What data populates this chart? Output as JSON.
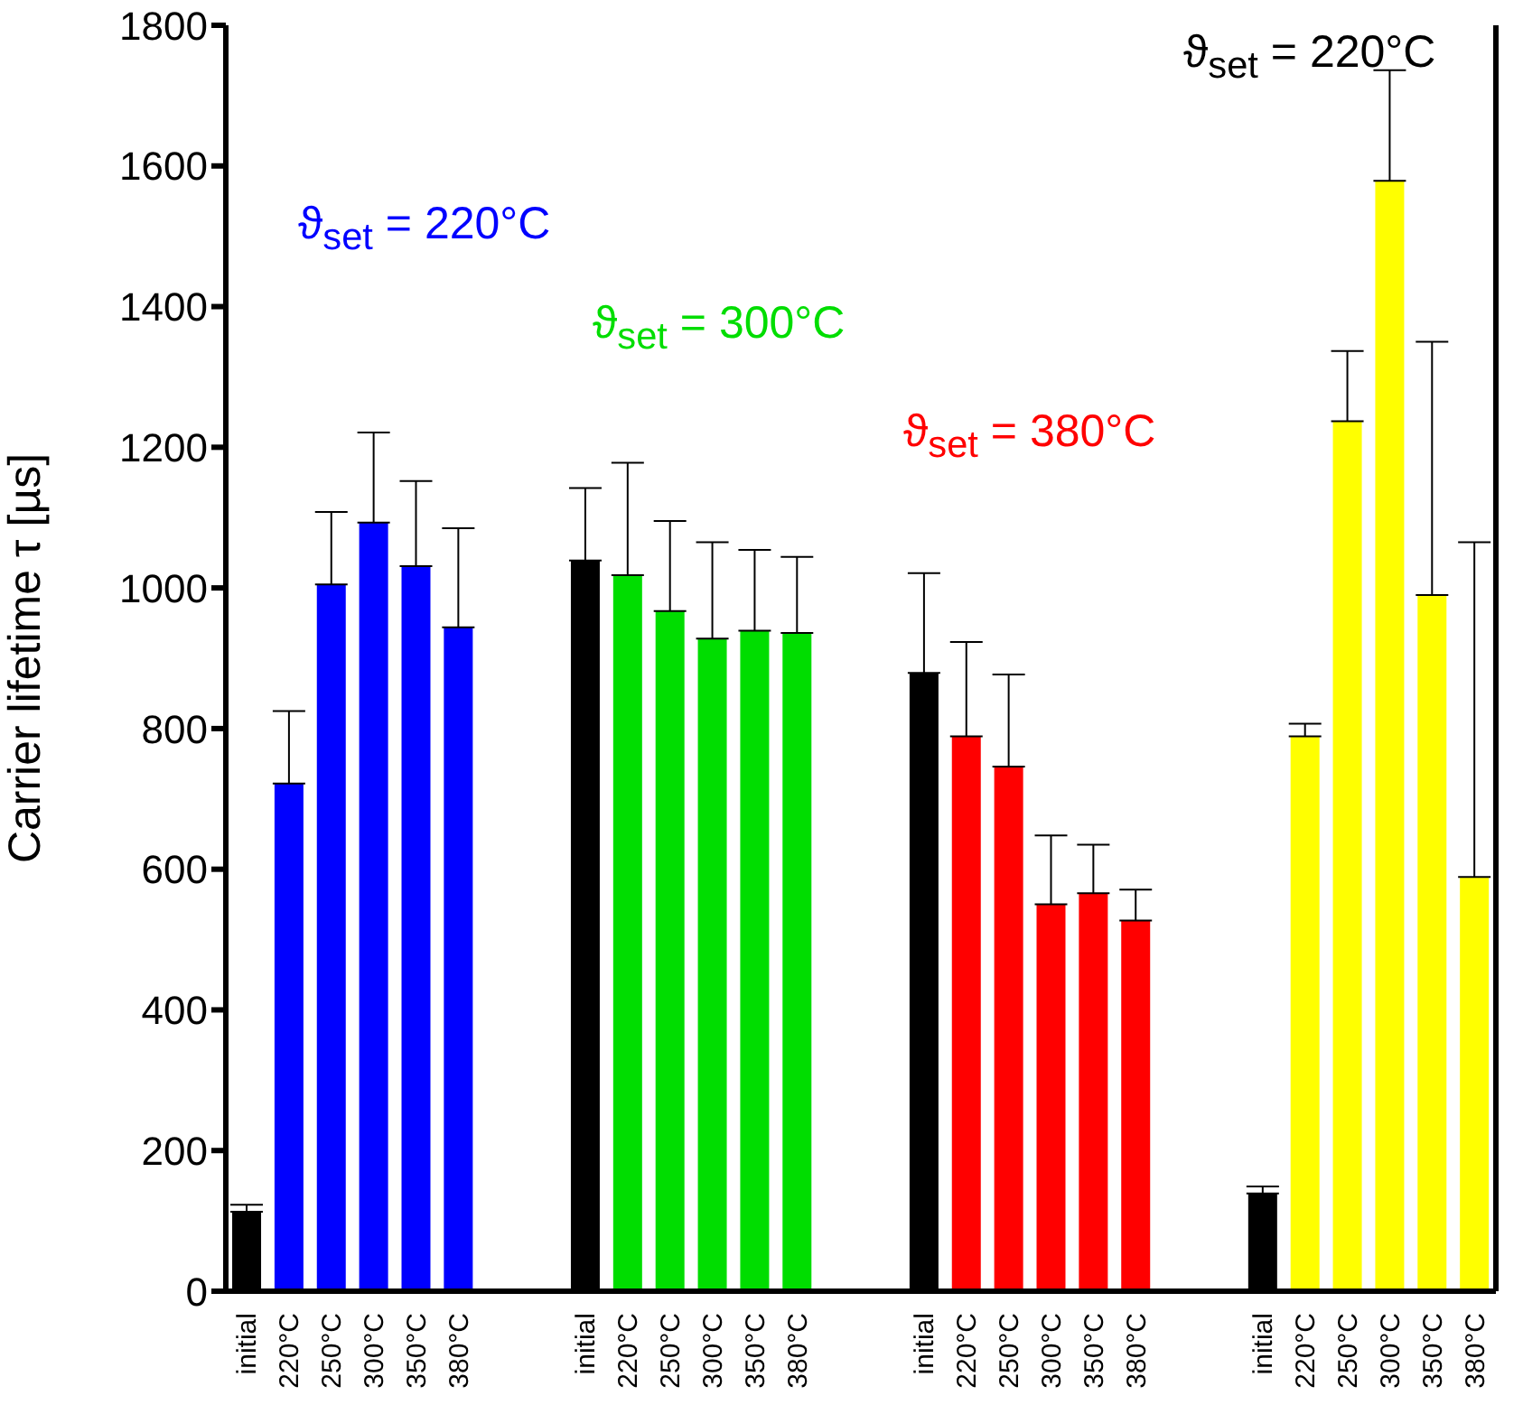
{
  "chart_data": {
    "type": "bar",
    "ylabel": "Carrier lifetime τ [µs]",
    "categories": [
      "initial",
      "220°C",
      "250°C",
      "300°C",
      "350°C",
      "380°C",
      null,
      null,
      "initial",
      "220°C",
      "250°C",
      "300°C",
      "350°C",
      "380°C",
      null,
      null,
      "initial",
      "220°C",
      "250°C",
      "300°C",
      "350°C",
      "380°C",
      null,
      null,
      "initial",
      "220°C",
      "250°C",
      "300°C",
      "350°C",
      "380°C"
    ],
    "values": [
      113,
      722,
      1005,
      1093,
      1031,
      944,
      null,
      null,
      1039,
      1018,
      967,
      928,
      939,
      936,
      null,
      null,
      879,
      789,
      746,
      550,
      566,
      527,
      null,
      null,
      139,
      789,
      1237,
      1579,
      990,
      589
    ],
    "errors": [
      [
        113,
        123
      ],
      [
        722,
        825
      ],
      [
        1005,
        1108
      ],
      [
        1093,
        1221
      ],
      [
        1031,
        1152
      ],
      [
        944,
        1085
      ],
      null,
      null,
      [
        1039,
        1142
      ],
      [
        1018,
        1178
      ],
      [
        967,
        1095
      ],
      [
        928,
        1065
      ],
      [
        939,
        1054
      ],
      [
        936,
        1044
      ],
      null,
      null,
      [
        879,
        1021
      ],
      [
        789,
        923
      ],
      [
        746,
        877
      ],
      [
        550,
        648
      ],
      [
        566,
        635
      ],
      [
        527,
        571
      ],
      null,
      null,
      [
        139,
        149
      ],
      [
        789,
        807
      ],
      [
        1237,
        1337
      ],
      [
        1579,
        1736
      ],
      [
        990,
        1350
      ],
      [
        589,
        1065
      ]
    ],
    "colors": [
      "#000000",
      "#0000ff",
      "#0000ff",
      "#0000ff",
      "#0000ff",
      "#0000ff",
      null,
      null,
      "#000000",
      "#00dd00",
      "#00dd00",
      "#00dd00",
      "#00dd00",
      "#00dd00",
      null,
      null,
      "#000000",
      "#ff0000",
      "#ff0000",
      "#ff0000",
      "#ff0000",
      "#ff0000",
      null,
      null,
      "#000000",
      "#ffff00",
      "#ffff00",
      "#ffff00",
      "#ffff00",
      "#ffff00"
    ],
    "annotations": [
      "ϑ$_{set}$ = 220°C",
      "ϑ$_{set}$ = 300°C",
      "ϑ$_{set}$ = 380°C",
      "ϑ$_{set}$ = 220°C"
    ],
    "ylim": [
      0,
      1800
    ],
    "yticks": [
      0,
      200,
      400,
      600,
      800,
      1000,
      1200,
      1400,
      1600,
      1800
    ],
    "grid": false,
    "legend": false
  }
}
